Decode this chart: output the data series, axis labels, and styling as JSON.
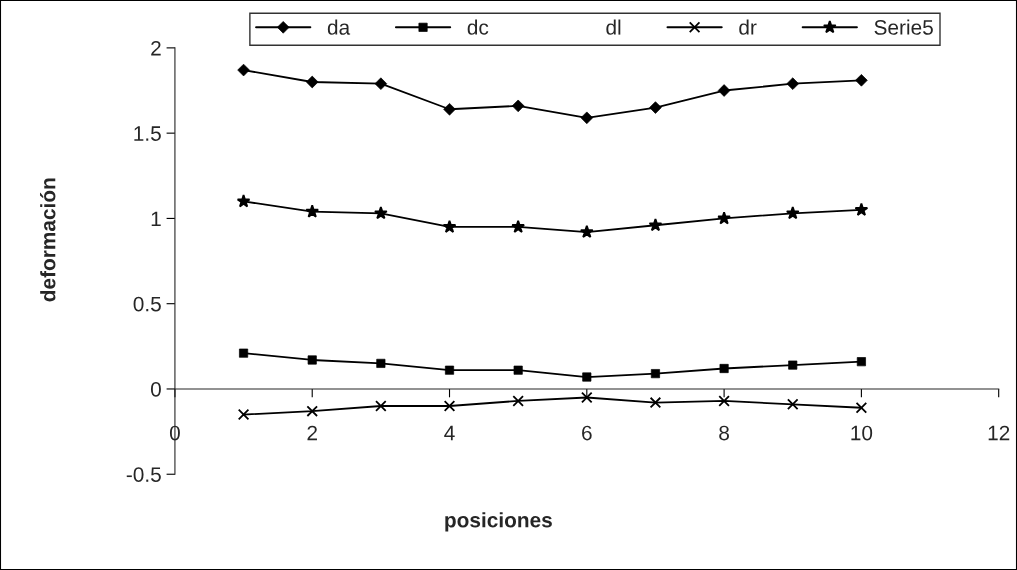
{
  "chart_data": {
    "type": "line",
    "xlabel": "posiciones",
    "ylabel": "deformación",
    "x": [
      1,
      2,
      3,
      4,
      5,
      6,
      7,
      8,
      9,
      10
    ],
    "series": [
      {
        "name": "da",
        "color": "#000000",
        "marker": "diamond",
        "values": [
          1.87,
          1.8,
          1.79,
          1.64,
          1.66,
          1.59,
          1.65,
          1.75,
          1.79,
          1.81
        ]
      },
      {
        "name": "dc",
        "color": "#000000",
        "marker": "square",
        "values": [
          0.21,
          0.17,
          0.15,
          0.11,
          0.11,
          0.07,
          0.09,
          0.12,
          0.14,
          0.16
        ]
      },
      {
        "name": "dl",
        "color": "#000000",
        "marker": "none",
        "line_style": "none",
        "values": [
          null,
          null,
          null,
          null,
          null,
          null,
          null,
          null,
          null,
          null
        ]
      },
      {
        "name": "dr",
        "color": "#000000",
        "marker": "cross",
        "values": [
          -0.15,
          -0.13,
          -0.1,
          -0.1,
          -0.07,
          -0.05,
          -0.08,
          -0.07,
          -0.09,
          -0.11
        ]
      },
      {
        "name": "Serie5",
        "color": "#000000",
        "marker": "star",
        "values": [
          1.1,
          1.04,
          1.03,
          0.95,
          0.95,
          0.92,
          0.96,
          1.0,
          1.03,
          1.05
        ]
      }
    ],
    "xlim": [
      0,
      12
    ],
    "xticks": [
      0,
      2,
      4,
      6,
      8,
      10,
      12
    ],
    "ylim": [
      -0.5,
      2
    ],
    "yticks": [
      -0.5,
      0,
      0.5,
      1,
      1.5,
      2
    ],
    "grid": false,
    "legend": "top",
    "line_style": "solid"
  }
}
